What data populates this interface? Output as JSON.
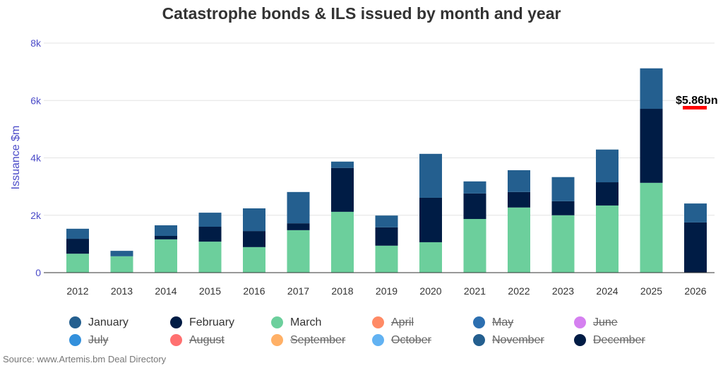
{
  "chart_data": {
    "type": "bar",
    "stacked": true,
    "title": "Catastrophe bonds & ILS issued by month and year",
    "ylabel": "Issuance $m",
    "xlabel": "",
    "ylim": [
      0,
      8000
    ],
    "yticks": [
      "0",
      "2k",
      "4k",
      "6k",
      "8k"
    ],
    "categories": [
      "2012",
      "2013",
      "2014",
      "2015",
      "2016",
      "2017",
      "2018",
      "2019",
      "2020",
      "2021",
      "2022",
      "2023",
      "2024",
      "2025",
      "2026"
    ],
    "series": [
      {
        "name": "March",
        "color": "#6ccf9c",
        "values": [
          660,
          570,
          1160,
          1080,
          890,
          1480,
          2120,
          940,
          1060,
          1870,
          2270,
          2000,
          2340,
          3130,
          0
        ]
      },
      {
        "name": "February",
        "color": "#001c45",
        "values": [
          520,
          0,
          120,
          520,
          560,
          240,
          1530,
          640,
          1550,
          890,
          540,
          490,
          810,
          2580,
          1750
        ]
      },
      {
        "name": "January",
        "color": "#245f8f",
        "values": [
          350,
          190,
          370,
          490,
          790,
          1090,
          220,
          410,
          1530,
          420,
          760,
          840,
          1140,
          1410,
          660
        ]
      }
    ],
    "annotation": "$5.86bn",
    "annotation_color": "#ff0000",
    "grid": true,
    "legend_position": "bottom",
    "legend": [
      {
        "label": "January",
        "color": "#245f8f",
        "hidden": false
      },
      {
        "label": "February",
        "color": "#001c45",
        "hidden": false
      },
      {
        "label": "March",
        "color": "#6ccf9c",
        "hidden": false
      },
      {
        "label": "April",
        "color": "#ff8a65",
        "hidden": true
      },
      {
        "label": "May",
        "color": "#2c6fb0",
        "hidden": true
      },
      {
        "label": "June",
        "color": "#d580f0",
        "hidden": true
      },
      {
        "label": "July",
        "color": "#3390dc",
        "hidden": true
      },
      {
        "label": "August",
        "color": "#ff7070",
        "hidden": true
      },
      {
        "label": "September",
        "color": "#ffb066",
        "hidden": true
      },
      {
        "label": "October",
        "color": "#62b2f2",
        "hidden": true
      },
      {
        "label": "November",
        "color": "#245f8f",
        "hidden": true
      },
      {
        "label": "December",
        "color": "#001c45",
        "hidden": true
      }
    ]
  },
  "source": "Source: www.Artemis.bm Deal Directory"
}
